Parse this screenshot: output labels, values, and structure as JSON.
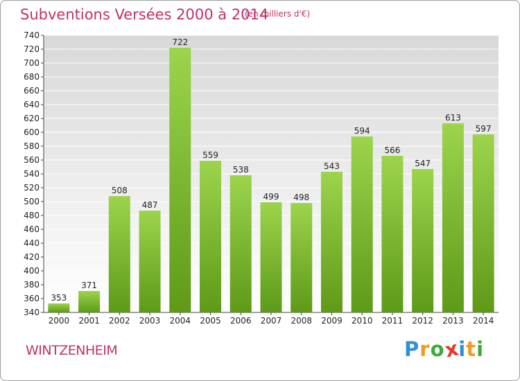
{
  "colors": {
    "title": "#c0306a",
    "bar_top": "#9cd44c",
    "bar_bottom": "#5e9a18",
    "plot_bg_top": "#d8d8d8",
    "plot_bg_bottom": "#ffffff",
    "grid": "#ffffff"
  },
  "chart_data": {
    "type": "bar",
    "title": "Subventions Versées 2000 à 2014",
    "subtitle": "(en milliers d'€)",
    "xlabel": "",
    "ylabel": "",
    "categories": [
      "2000",
      "2001",
      "2002",
      "2003",
      "2004",
      "2005",
      "2006",
      "2007",
      "2008",
      "2009",
      "2010",
      "2011",
      "2012",
      "2013",
      "2014"
    ],
    "values": [
      353,
      371,
      508,
      487,
      722,
      559,
      538,
      499,
      498,
      543,
      594,
      566,
      547,
      613,
      597
    ],
    "ylim": [
      340,
      740
    ],
    "yticks": [
      340,
      360,
      380,
      400,
      420,
      440,
      460,
      480,
      500,
      520,
      540,
      560,
      580,
      600,
      620,
      640,
      660,
      680,
      700,
      720,
      740
    ],
    "grid": true,
    "legend": "none"
  },
  "footer": {
    "commune": "WINTZENHEIM",
    "logo_letters": [
      {
        "ch": "P",
        "color": "#2f8fd8"
      },
      {
        "ch": "r",
        "color": "#f29a1e"
      },
      {
        "ch": "o",
        "color": "#3aaa3a"
      },
      {
        "ch": "x",
        "color": "#e8372c"
      },
      {
        "ch": "i",
        "color": "#2f8fd8"
      },
      {
        "ch": "t",
        "color": "#f29a1e"
      },
      {
        "ch": "i",
        "color": "#3aaa3a"
      }
    ]
  }
}
